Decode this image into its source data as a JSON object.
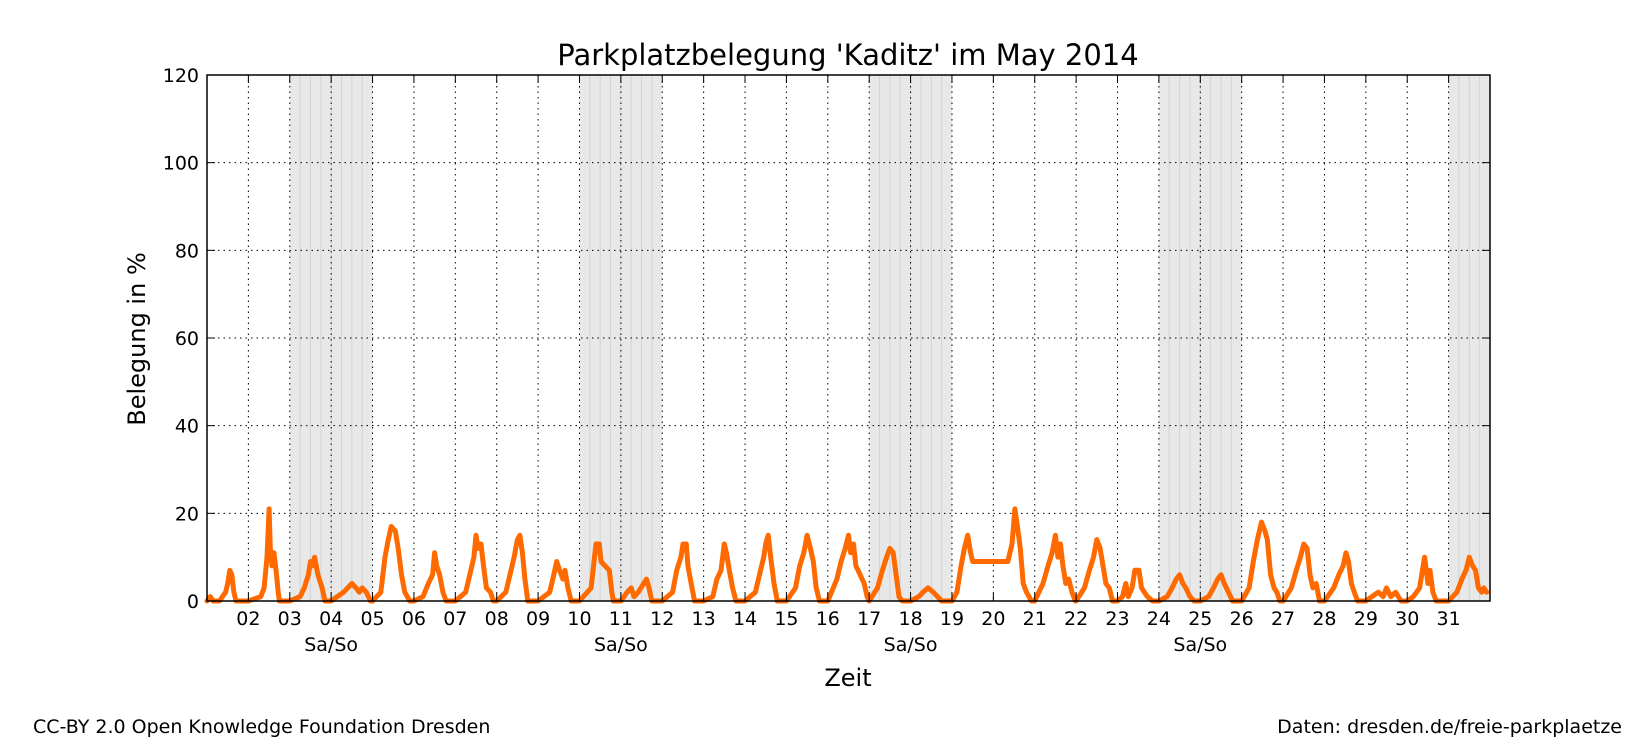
{
  "chart_data": {
    "type": "line",
    "title": "Parkplatzbelegung 'Kaditz' im May 2014",
    "xlabel": "Zeit",
    "ylabel": "Belegung in %",
    "ylim": [
      0,
      120
    ],
    "yticks": [
      0,
      20,
      40,
      60,
      80,
      100,
      120
    ],
    "xlim_days": [
      1,
      32
    ],
    "xtick_labels": [
      "02",
      "03",
      "04",
      "05",
      "06",
      "07",
      "08",
      "09",
      "10",
      "11",
      "12",
      "13",
      "14",
      "15",
      "16",
      "17",
      "18",
      "19",
      "20",
      "21",
      "22",
      "23",
      "24",
      "25",
      "26",
      "27",
      "28",
      "29",
      "30",
      "31"
    ],
    "weekend_label": "Sa/So",
    "weekends": [
      [
        3,
        5
      ],
      [
        10,
        12
      ],
      [
        17,
        19
      ],
      [
        24,
        26
      ],
      [
        31,
        32
      ]
    ],
    "grid": true,
    "line_color": "#ff6a00",
    "weekend_color": "#e8e8e8",
    "series": [
      {
        "points": [
          [
            1.0,
            0
          ],
          [
            1.08,
            1
          ],
          [
            1.15,
            0
          ],
          [
            1.3,
            0
          ],
          [
            1.45,
            2
          ],
          [
            1.5,
            4
          ],
          [
            1.55,
            7
          ],
          [
            1.6,
            6
          ],
          [
            1.65,
            2
          ],
          [
            1.7,
            0
          ],
          [
            2.0,
            0
          ],
          [
            2.3,
            1
          ],
          [
            2.38,
            3
          ],
          [
            2.45,
            10
          ],
          [
            2.5,
            21
          ],
          [
            2.53,
            12
          ],
          [
            2.57,
            8
          ],
          [
            2.62,
            11
          ],
          [
            2.68,
            6
          ],
          [
            2.72,
            2
          ],
          [
            2.75,
            0
          ],
          [
            3.0,
            0
          ],
          [
            3.25,
            1
          ],
          [
            3.35,
            3
          ],
          [
            3.45,
            6
          ],
          [
            3.5,
            9
          ],
          [
            3.55,
            8
          ],
          [
            3.6,
            10
          ],
          [
            3.68,
            6
          ],
          [
            3.78,
            3
          ],
          [
            3.85,
            0
          ],
          [
            4.0,
            0
          ],
          [
            4.15,
            1
          ],
          [
            4.3,
            2
          ],
          [
            4.4,
            3
          ],
          [
            4.5,
            4
          ],
          [
            4.6,
            3
          ],
          [
            4.68,
            2
          ],
          [
            4.75,
            3
          ],
          [
            4.85,
            2
          ],
          [
            4.95,
            0
          ],
          [
            5.0,
            0
          ],
          [
            5.2,
            2
          ],
          [
            5.3,
            10
          ],
          [
            5.38,
            14
          ],
          [
            5.45,
            17
          ],
          [
            5.55,
            16
          ],
          [
            5.62,
            12
          ],
          [
            5.7,
            6
          ],
          [
            5.78,
            2
          ],
          [
            5.9,
            0
          ],
          [
            6.0,
            0
          ],
          [
            6.22,
            1
          ],
          [
            6.35,
            4
          ],
          [
            6.45,
            6
          ],
          [
            6.5,
            11
          ],
          [
            6.55,
            8
          ],
          [
            6.62,
            6
          ],
          [
            6.7,
            2
          ],
          [
            6.78,
            0
          ],
          [
            7.0,
            0
          ],
          [
            7.25,
            2
          ],
          [
            7.35,
            6
          ],
          [
            7.45,
            10
          ],
          [
            7.5,
            15
          ],
          [
            7.55,
            12
          ],
          [
            7.62,
            13
          ],
          [
            7.68,
            8
          ],
          [
            7.75,
            3
          ],
          [
            7.85,
            2
          ],
          [
            7.92,
            0
          ],
          [
            8.0,
            0
          ],
          [
            8.22,
            2
          ],
          [
            8.32,
            6
          ],
          [
            8.42,
            10
          ],
          [
            8.5,
            14
          ],
          [
            8.56,
            15
          ],
          [
            8.62,
            11
          ],
          [
            8.68,
            5
          ],
          [
            8.75,
            0
          ],
          [
            9.0,
            0
          ],
          [
            9.28,
            2
          ],
          [
            9.38,
            6
          ],
          [
            9.45,
            9
          ],
          [
            9.52,
            7
          ],
          [
            9.6,
            5
          ],
          [
            9.65,
            7
          ],
          [
            9.72,
            3
          ],
          [
            9.8,
            0
          ],
          [
            10.0,
            0
          ],
          [
            10.28,
            3
          ],
          [
            10.35,
            9
          ],
          [
            10.4,
            13
          ],
          [
            10.48,
            13
          ],
          [
            10.52,
            9
          ],
          [
            10.62,
            8
          ],
          [
            10.72,
            7
          ],
          [
            10.78,
            2
          ],
          [
            10.82,
            0
          ],
          [
            11.0,
            0
          ],
          [
            11.15,
            2
          ],
          [
            11.25,
            3
          ],
          [
            11.32,
            1
          ],
          [
            11.42,
            2
          ],
          [
            11.55,
            4
          ],
          [
            11.62,
            5
          ],
          [
            11.68,
            3
          ],
          [
            11.75,
            0
          ],
          [
            12.0,
            0
          ],
          [
            12.25,
            2
          ],
          [
            12.35,
            7
          ],
          [
            12.45,
            10
          ],
          [
            12.5,
            13
          ],
          [
            12.58,
            13
          ],
          [
            12.62,
            8
          ],
          [
            12.7,
            4
          ],
          [
            12.78,
            0
          ],
          [
            13.0,
            0
          ],
          [
            13.22,
            1
          ],
          [
            13.32,
            5
          ],
          [
            13.42,
            7
          ],
          [
            13.5,
            13
          ],
          [
            13.55,
            11
          ],
          [
            13.62,
            7
          ],
          [
            13.7,
            3
          ],
          [
            13.78,
            0
          ],
          [
            14.0,
            0
          ],
          [
            14.25,
            2
          ],
          [
            14.35,
            6
          ],
          [
            14.45,
            10
          ],
          [
            14.5,
            13
          ],
          [
            14.56,
            15
          ],
          [
            14.62,
            10
          ],
          [
            14.7,
            4
          ],
          [
            14.78,
            0
          ],
          [
            15.0,
            0
          ],
          [
            15.22,
            3
          ],
          [
            15.32,
            8
          ],
          [
            15.42,
            11
          ],
          [
            15.5,
            15
          ],
          [
            15.58,
            12
          ],
          [
            15.65,
            9
          ],
          [
            15.72,
            3
          ],
          [
            15.8,
            0
          ],
          [
            16.0,
            0
          ],
          [
            16.22,
            5
          ],
          [
            16.32,
            9
          ],
          [
            16.42,
            12
          ],
          [
            16.5,
            15
          ],
          [
            16.55,
            11
          ],
          [
            16.62,
            13
          ],
          [
            16.68,
            8
          ],
          [
            16.78,
            6
          ],
          [
            16.88,
            4
          ],
          [
            16.95,
            1
          ],
          [
            17.0,
            0
          ],
          [
            17.2,
            3
          ],
          [
            17.32,
            7
          ],
          [
            17.42,
            10
          ],
          [
            17.5,
            12
          ],
          [
            17.58,
            11
          ],
          [
            17.65,
            6
          ],
          [
            17.72,
            1
          ],
          [
            17.8,
            0
          ],
          [
            18.0,
            0
          ],
          [
            18.2,
            1
          ],
          [
            18.3,
            2
          ],
          [
            18.42,
            3
          ],
          [
            18.55,
            2
          ],
          [
            18.65,
            1
          ],
          [
            18.75,
            0
          ],
          [
            19.0,
            0
          ],
          [
            19.12,
            2
          ],
          [
            19.22,
            8
          ],
          [
            19.3,
            12
          ],
          [
            19.38,
            15
          ],
          [
            19.45,
            11
          ],
          [
            19.5,
            9
          ],
          [
            19.8,
            9
          ],
          [
            20.1,
            9
          ],
          [
            20.35,
            9
          ],
          [
            20.45,
            13
          ],
          [
            20.52,
            21
          ],
          [
            20.58,
            17
          ],
          [
            20.65,
            12
          ],
          [
            20.72,
            4
          ],
          [
            20.8,
            2
          ],
          [
            20.92,
            0
          ],
          [
            21.0,
            0
          ],
          [
            21.2,
            4
          ],
          [
            21.32,
            8
          ],
          [
            21.42,
            11
          ],
          [
            21.5,
            15
          ],
          [
            21.56,
            10
          ],
          [
            21.62,
            13
          ],
          [
            21.68,
            8
          ],
          [
            21.75,
            4
          ],
          [
            21.82,
            5
          ],
          [
            21.9,
            2
          ],
          [
            21.98,
            0
          ],
          [
            22.0,
            0
          ],
          [
            22.2,
            3
          ],
          [
            22.32,
            7
          ],
          [
            22.42,
            10
          ],
          [
            22.5,
            14
          ],
          [
            22.58,
            12
          ],
          [
            22.65,
            8
          ],
          [
            22.72,
            4
          ],
          [
            22.8,
            3
          ],
          [
            22.88,
            0
          ],
          [
            23.0,
            0
          ],
          [
            23.12,
            1
          ],
          [
            23.2,
            4
          ],
          [
            23.26,
            1
          ],
          [
            23.35,
            3
          ],
          [
            23.42,
            7
          ],
          [
            23.52,
            7
          ],
          [
            23.58,
            3
          ],
          [
            23.65,
            2
          ],
          [
            23.72,
            1
          ],
          [
            23.85,
            0
          ],
          [
            24.0,
            0
          ],
          [
            24.2,
            1
          ],
          [
            24.32,
            3
          ],
          [
            24.42,
            5
          ],
          [
            24.5,
            6
          ],
          [
            24.58,
            4
          ],
          [
            24.65,
            3
          ],
          [
            24.75,
            1
          ],
          [
            24.85,
            0
          ],
          [
            25.0,
            0
          ],
          [
            25.2,
            1
          ],
          [
            25.32,
            3
          ],
          [
            25.42,
            5
          ],
          [
            25.5,
            6
          ],
          [
            25.58,
            4
          ],
          [
            25.68,
            2
          ],
          [
            25.78,
            0
          ],
          [
            26.0,
            0
          ],
          [
            26.18,
            3
          ],
          [
            26.28,
            9
          ],
          [
            26.38,
            14
          ],
          [
            26.48,
            18
          ],
          [
            26.56,
            16
          ],
          [
            26.62,
            14
          ],
          [
            26.7,
            6
          ],
          [
            26.78,
            3
          ],
          [
            26.85,
            2
          ],
          [
            26.92,
            0
          ],
          [
            27.0,
            0
          ],
          [
            27.2,
            3
          ],
          [
            27.32,
            7
          ],
          [
            27.42,
            10
          ],
          [
            27.5,
            13
          ],
          [
            27.58,
            12
          ],
          [
            27.65,
            6
          ],
          [
            27.72,
            3
          ],
          [
            27.8,
            4
          ],
          [
            27.88,
            0
          ],
          [
            28.0,
            0
          ],
          [
            28.22,
            3
          ],
          [
            28.35,
            6
          ],
          [
            28.45,
            8
          ],
          [
            28.52,
            11
          ],
          [
            28.58,
            9
          ],
          [
            28.65,
            4
          ],
          [
            28.72,
            2
          ],
          [
            28.8,
            0
          ],
          [
            29.0,
            0
          ],
          [
            29.15,
            1
          ],
          [
            29.3,
            2
          ],
          [
            29.42,
            1
          ],
          [
            29.5,
            3
          ],
          [
            29.6,
            1
          ],
          [
            29.72,
            2
          ],
          [
            29.85,
            0
          ],
          [
            30.0,
            0
          ],
          [
            30.15,
            1
          ],
          [
            30.3,
            3
          ],
          [
            30.42,
            10
          ],
          [
            30.5,
            4
          ],
          [
            30.55,
            7
          ],
          [
            30.62,
            2
          ],
          [
            30.7,
            0
          ],
          [
            31.0,
            0
          ],
          [
            31.2,
            2
          ],
          [
            31.32,
            5
          ],
          [
            31.42,
            7
          ],
          [
            31.5,
            10
          ],
          [
            31.58,
            8
          ],
          [
            31.65,
            7
          ],
          [
            31.72,
            3
          ],
          [
            31.8,
            2
          ],
          [
            31.85,
            3
          ],
          [
            31.92,
            2
          ]
        ]
      }
    ]
  },
  "footer": {
    "license": "CC-BY 2.0 Open Knowledge Foundation Dresden",
    "source": "Daten: dresden.de/freie-parkplaetze"
  }
}
